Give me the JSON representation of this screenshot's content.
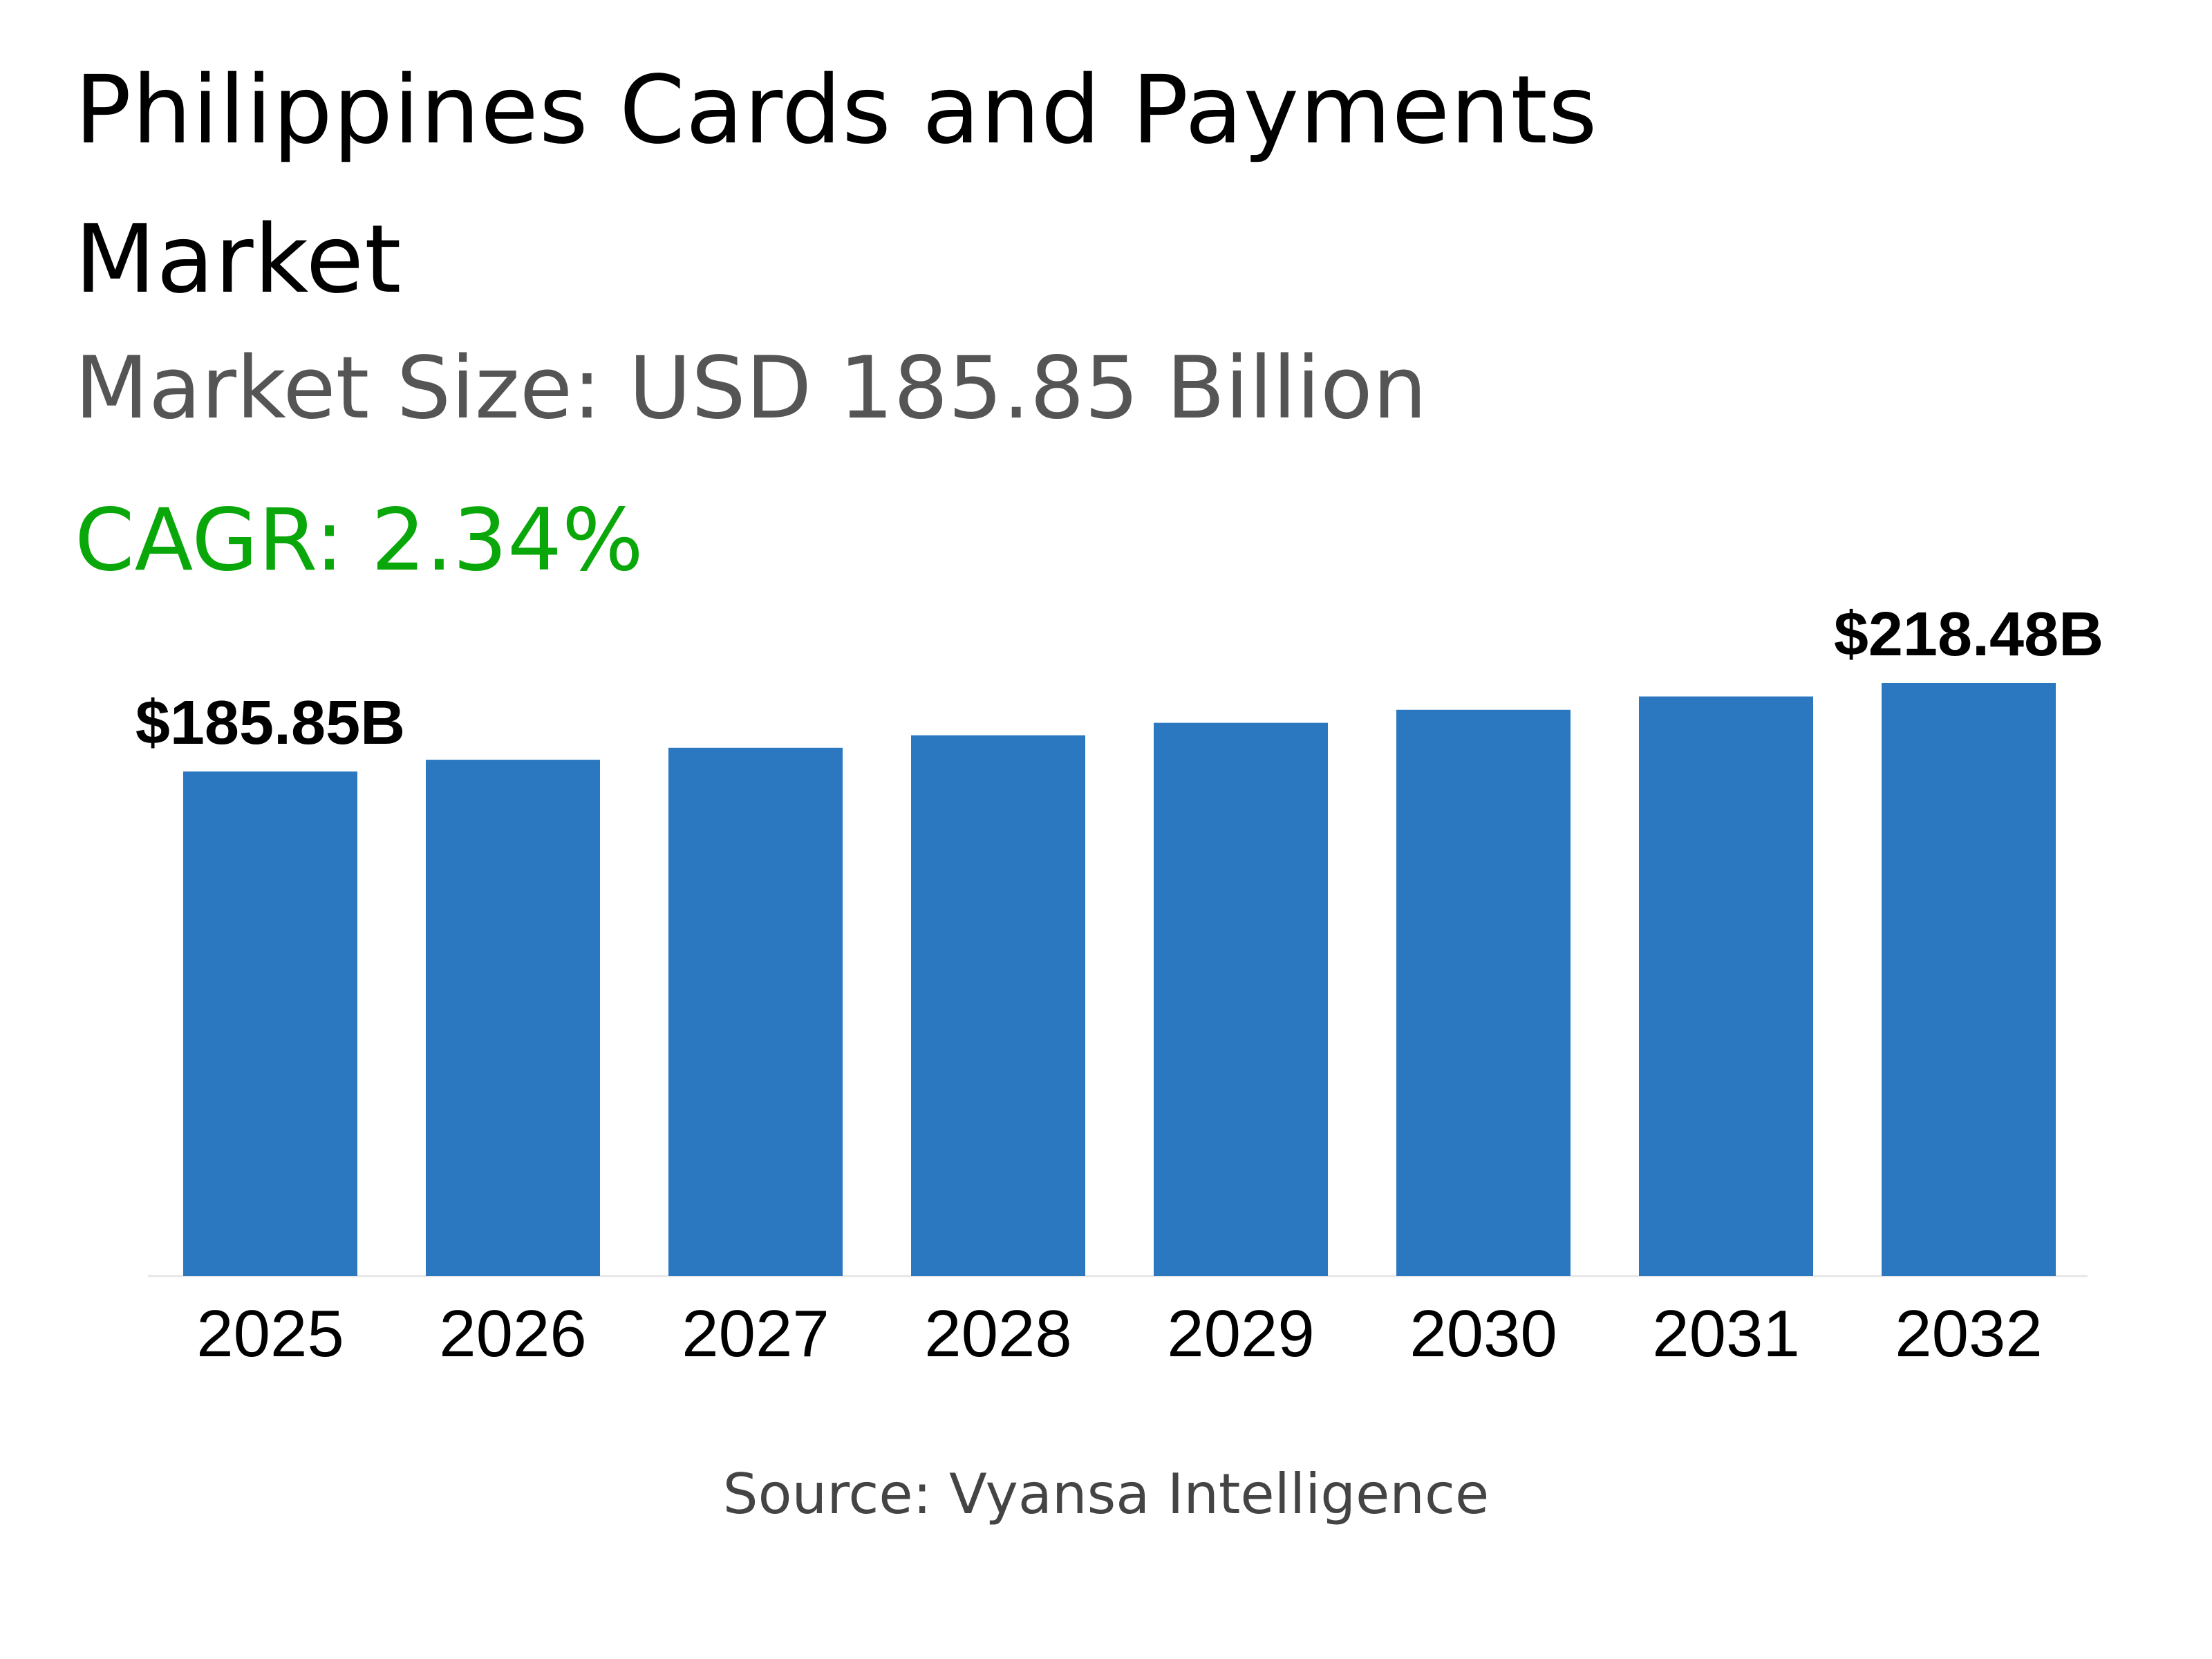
{
  "header": {
    "title": "Philippines Cards and Payments Market",
    "market_size": "Market Size: USD 185.85 Billion",
    "cagr": "CAGR: 2.34%"
  },
  "footer": {
    "source": "Source: Vyansa Intelligence"
  },
  "colors": {
    "bar": "#2b78c0",
    "cagr": "#0aa70a",
    "subtitle": "#555555"
  },
  "chart_data": {
    "type": "bar",
    "categories": [
      "2025",
      "2026",
      "2027",
      "2028",
      "2029",
      "2030",
      "2031",
      "2032"
    ],
    "values": [
      185.85,
      190.2,
      194.6,
      199.2,
      203.8,
      208.6,
      213.5,
      218.48
    ],
    "data_labels": [
      {
        "index": 0,
        "text": "$185.85B"
      },
      {
        "index": 7,
        "text": "$218.48B"
      }
    ],
    "xlabel": "",
    "ylabel": "",
    "ylim": [
      0,
      218.48
    ],
    "grid": false,
    "legend": "none"
  }
}
